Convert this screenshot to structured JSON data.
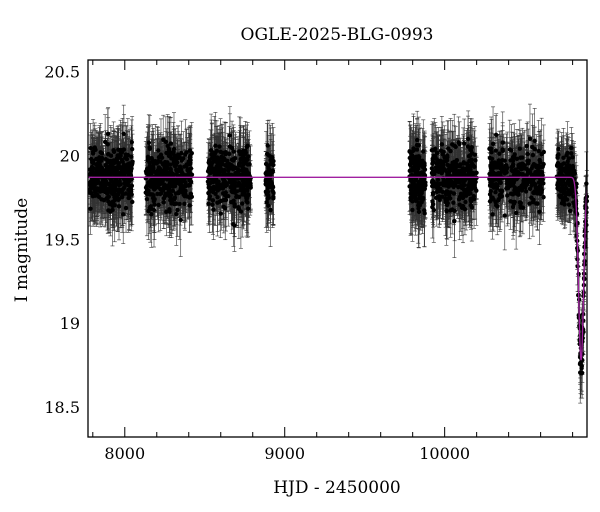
{
  "chart_data": {
    "type": "scatter",
    "title": "OGLE-2025-BLG-0993",
    "xlabel": "HJD - 2450000",
    "ylabel": "I magnitude",
    "xlim": [
      7770,
      10890
    ],
    "ylim": [
      20.57,
      18.32
    ],
    "y_axis_inverted": true,
    "xticks": [
      8000,
      9000,
      10000
    ],
    "xtick_labels": [
      "8000",
      "9000",
      "10000"
    ],
    "yticks": [
      18.5,
      19,
      19.5,
      20,
      20.5
    ],
    "ytick_labels": [
      "18.5",
      "19",
      "19.5",
      "20",
      "20.5"
    ],
    "grid": false,
    "legend": "none",
    "observing_seasons": [
      {
        "x_start": 7780,
        "x_end": 8050,
        "mag_mean": 19.87,
        "mag_scatter": 0.18,
        "err_mean": 0.17,
        "points": 360
      },
      {
        "x_start": 8130,
        "x_end": 8420,
        "mag_mean": 19.87,
        "mag_scatter": 0.18,
        "err_mean": 0.17,
        "points": 340
      },
      {
        "x_start": 8520,
        "x_end": 8790,
        "mag_mean": 19.87,
        "mag_scatter": 0.18,
        "err_mean": 0.17,
        "points": 330
      },
      {
        "x_start": 8880,
        "x_end": 8930,
        "mag_mean": 19.87,
        "mag_scatter": 0.16,
        "err_mean": 0.17,
        "points": 60
      },
      {
        "x_start": 9780,
        "x_end": 9880,
        "mag_mean": 19.87,
        "mag_scatter": 0.19,
        "err_mean": 0.18,
        "points": 160
      },
      {
        "x_start": 9920,
        "x_end": 10200,
        "mag_mean": 19.87,
        "mag_scatter": 0.18,
        "err_mean": 0.17,
        "points": 330
      },
      {
        "x_start": 10280,
        "x_end": 10620,
        "mag_mean": 19.87,
        "mag_scatter": 0.18,
        "err_mean": 0.17,
        "points": 330
      },
      {
        "x_start": 10700,
        "x_end": 10890,
        "mag_mean": 19.87,
        "mag_scatter": 0.15,
        "err_mean": 0.15,
        "points": 260
      }
    ],
    "model_fit": {
      "color": "#a020a0",
      "baseline_mag": 19.87,
      "peak_x": 10853,
      "peak_mag": 18.78,
      "timescale_days": 16
    },
    "colors": {
      "points": "#000000",
      "error_bars": "#333333",
      "axes": "#000000"
    }
  }
}
